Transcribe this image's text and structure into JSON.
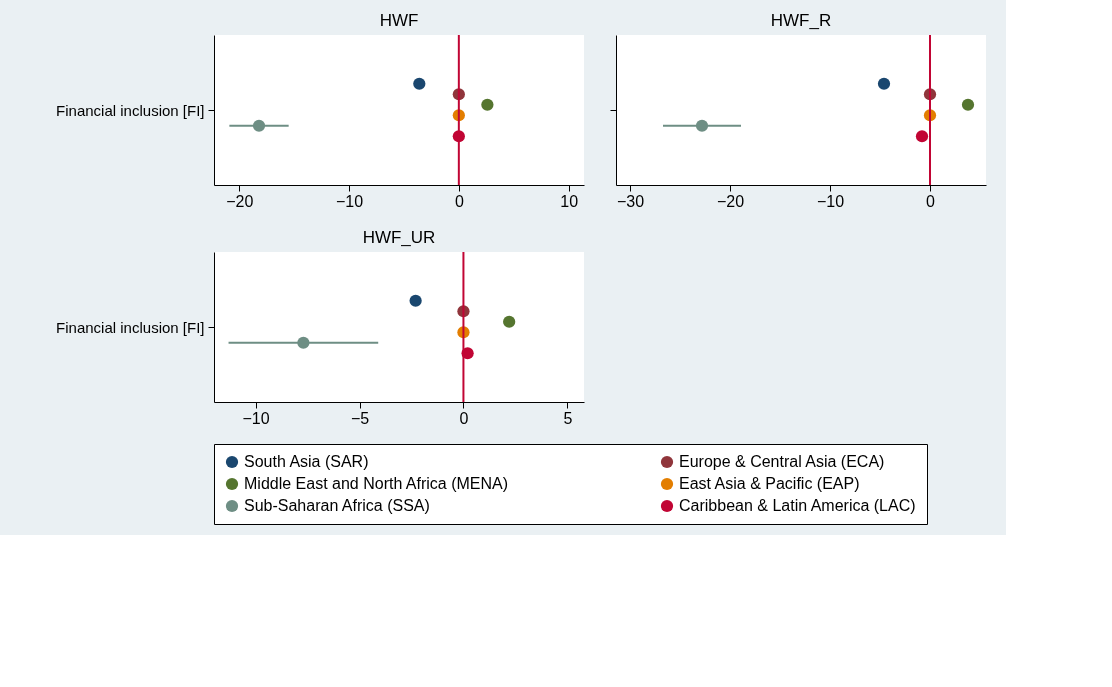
{
  "chart_data": [
    {
      "type": "scatter",
      "orientation": "horizontal",
      "title": "HWF",
      "categories": [
        "Financial inclusion [FI]"
      ],
      "xlim": [
        -22.3,
        11.4
      ],
      "xticks": [
        -20,
        -10,
        0,
        10
      ],
      "grid": false,
      "marker": "circle",
      "legend": "bottom",
      "ref_lines": [
        {
          "axis": "x",
          "value": 0,
          "color": "#c10534"
        }
      ],
      "series": [
        {
          "name": "South Asia (SAR)",
          "color": "#1a476f",
          "values": [
            -3.6
          ]
        },
        {
          "name": "Europe & Central Asia (ECA)",
          "color": "#90353b",
          "values": [
            0
          ]
        },
        {
          "name": "Middle East and North Africa (MENA)",
          "color": "#55752f",
          "values": [
            2.6
          ]
        },
        {
          "name": "East Asia & Pacific (EAP)",
          "color": "#e37e00",
          "values": [
            0
          ]
        },
        {
          "name": "Sub-Saharan Africa (SSA)",
          "color": "#6e8e84",
          "values": [
            -18.2
          ],
          "errors": [
            [
              -20.9,
              -15.5
            ]
          ]
        },
        {
          "name": "Caribbean & Latin America (LAC)",
          "color": "#c10534",
          "values": [
            0
          ]
        }
      ]
    },
    {
      "type": "scatter",
      "orientation": "horizontal",
      "title": "HWF_R",
      "categories": [
        null
      ],
      "xlim": [
        -31.4,
        5.6
      ],
      "xticks": [
        -30,
        -20,
        -10,
        0
      ],
      "grid": false,
      "marker": "circle",
      "legend": "bottom",
      "tick_labels": "x",
      "ref_lines": [
        {
          "axis": "x",
          "value": 0,
          "color": "#c10534"
        }
      ],
      "series": [
        {
          "name": "South Asia (SAR)",
          "color": "#1a476f",
          "values": [
            -4.6
          ]
        },
        {
          "name": "Europe & Central Asia (ECA)",
          "color": "#90353b",
          "values": [
            0
          ]
        },
        {
          "name": "Middle East and North Africa (MENA)",
          "color": "#55752f",
          "values": [
            3.8
          ]
        },
        {
          "name": "East Asia & Pacific (EAP)",
          "color": "#e37e00",
          "values": [
            0
          ]
        },
        {
          "name": "Sub-Saharan Africa (SSA)",
          "color": "#6e8e84",
          "values": [
            -22.8
          ],
          "errors": [
            [
              -26.7,
              -18.9
            ]
          ]
        },
        {
          "name": "Caribbean & Latin America (LAC)",
          "color": "#c10534",
          "values": [
            -0.8
          ]
        }
      ]
    },
    {
      "type": "scatter",
      "orientation": "horizontal",
      "title": "HWF_UR",
      "categories": [
        "Financial inclusion [FI]"
      ],
      "xlim": [
        -12.0,
        5.8
      ],
      "xticks": [
        -10,
        -5,
        0,
        5
      ],
      "grid": false,
      "marker": "circle",
      "legend": "bottom",
      "ref_lines": [
        {
          "axis": "x",
          "value": 0,
          "color": "#c10534"
        }
      ],
      "series": [
        {
          "name": "South Asia (SAR)",
          "color": "#1a476f",
          "values": [
            -2.3
          ]
        },
        {
          "name": "Europe & Central Asia (ECA)",
          "color": "#90353b",
          "values": [
            0
          ]
        },
        {
          "name": "Middle East and North Africa (MENA)",
          "color": "#55752f",
          "values": [
            2.2
          ]
        },
        {
          "name": "East Asia & Pacific (EAP)",
          "color": "#e37e00",
          "values": [
            0
          ]
        },
        {
          "name": "Sub-Saharan Africa (SSA)",
          "color": "#6e8e84",
          "values": [
            -7.7
          ],
          "errors": [
            [
              -11.3,
              -4.1
            ]
          ]
        },
        {
          "name": "Caribbean & Latin America (LAC)",
          "color": "#c10534",
          "values": [
            0.2
          ]
        }
      ]
    }
  ]
}
